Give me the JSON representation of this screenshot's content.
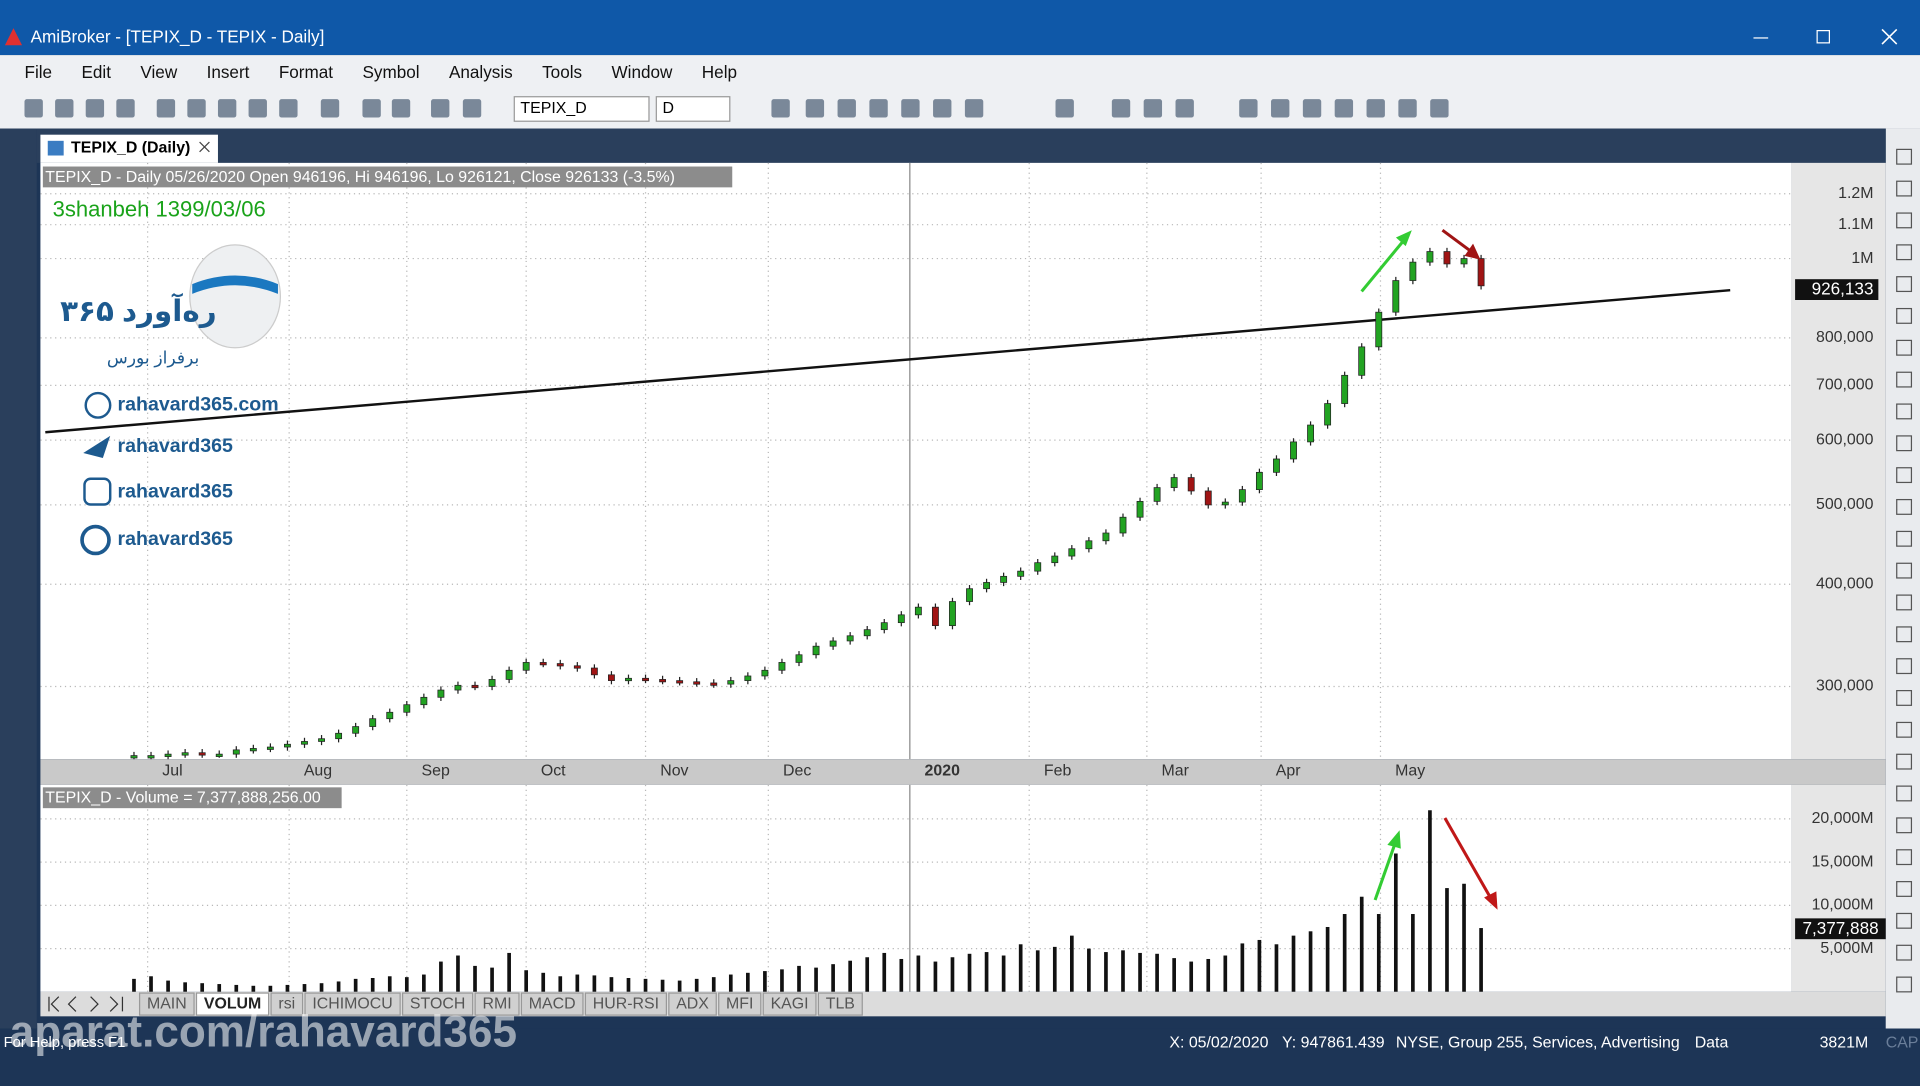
{
  "window": {
    "title": "AmiBroker - [TEPIX_D - TEPIX - Daily]"
  },
  "menu": [
    "File",
    "Edit",
    "View",
    "Insert",
    "Format",
    "Symbol",
    "Analysis",
    "Tools",
    "Window",
    "Help"
  ],
  "toolbar": {
    "symbol": "TEPIX_D",
    "interval": "D"
  },
  "tab": "TEPIX_D (Daily)",
  "overlay": {
    "date": "3shanbeh 1399/03/06",
    "logo": "۳۶۵ ره‌آورد",
    "logo_sub": "برفراز بورس",
    "links": [
      "rahavard365.com",
      "rahavard365",
      "rahavard365",
      "rahavard365"
    ]
  },
  "chart_data": [
    {
      "type": "candlestick",
      "title": "TEPIX_D - Daily 05/26/2020 Open 946196, Hi 946196, Lo 926121, Close 926133 (-3.5%)",
      "last_label": "926,133",
      "log_scale": true,
      "grid": true,
      "up_color": "#22a322",
      "down_color": "#a01414",
      "xlim": [
        -5.2,
        97.2
      ],
      "xticks": [
        {
          "value": 0.8,
          "label": "Jul"
        },
        {
          "value": 9.1,
          "label": "Aug"
        },
        {
          "value": 16,
          "label": "Sep"
        },
        {
          "value": 23,
          "label": "Oct"
        },
        {
          "value": 30,
          "label": "Nov"
        },
        {
          "value": 37.2,
          "label": "Dec"
        },
        {
          "value": 45.5,
          "label": "2020"
        },
        {
          "value": 52.5,
          "label": "Feb"
        },
        {
          "value": 59.4,
          "label": "Mar"
        },
        {
          "value": 66.1,
          "label": "Apr"
        },
        {
          "value": 73.1,
          "label": "May"
        }
      ],
      "ylim": [
        244500,
        1300000
      ],
      "yticks": [
        {
          "value": 300000,
          "label": "300,000"
        },
        {
          "value": 400000,
          "label": "400,000"
        },
        {
          "value": 500000,
          "label": "500,000"
        },
        {
          "value": 600000,
          "label": "600,000"
        },
        {
          "value": 700000,
          "label": "700,000"
        },
        {
          "value": 800000,
          "label": "800,000"
        },
        {
          "value": 1000000,
          "label": "1M"
        },
        {
          "value": 1100000,
          "label": "1.1M"
        },
        {
          "value": 1200000,
          "label": "1.2M"
        }
      ],
      "values": [
        247000,
        247000,
        248000,
        249000,
        248000,
        248000,
        251000,
        252000,
        253000,
        255000,
        257000,
        259000,
        263000,
        268000,
        274000,
        279000,
        285000,
        291000,
        297000,
        301000,
        300000,
        306000,
        314000,
        321000,
        320000,
        318000,
        316000,
        310000,
        305000,
        307000,
        306000,
        305000,
        304000,
        303000,
        302000,
        305000,
        309000,
        314000,
        321000,
        328000,
        336000,
        341000,
        346000,
        352000,
        359000,
        367000,
        375000,
        356000,
        381000,
        395000,
        402000,
        409000,
        415000,
        425000,
        433000,
        442000,
        452000,
        462000,
        483000,
        505000,
        525000,
        540000,
        520000,
        500000,
        504000,
        522000,
        548000,
        569000,
        597000,
        626000,
        665000,
        720000,
        780000,
        860000,
        940000,
        990000,
        1020000,
        985000,
        1000000,
        926133
      ]
    },
    {
      "type": "bar",
      "title": "TEPIX_D - Volume = 7,377,888,256.00",
      "last_label": "7,377,888",
      "color": "#111111",
      "grid": true,
      "xlim": [
        -5.2,
        97.2
      ],
      "ylim": [
        0,
        23650
      ],
      "yticks": [
        {
          "value": 5000,
          "label": "5,000M"
        },
        {
          "value": 10000,
          "label": "10,000M"
        },
        {
          "value": 15000,
          "label": "15,000M"
        },
        {
          "value": 20000,
          "label": "20,000M"
        }
      ],
      "values": [
        1500,
        1800,
        1300,
        1100,
        1000,
        900,
        800,
        700,
        700,
        800,
        900,
        1000,
        1200,
        1500,
        1600,
        1800,
        1700,
        2000,
        3500,
        4200,
        3000,
        2800,
        4500,
        2500,
        2200,
        1800,
        2000,
        1900,
        1700,
        1600,
        1500,
        1400,
        1300,
        1500,
        1700,
        2000,
        2200,
        2400,
        2600,
        3000,
        2800,
        3200,
        3600,
        4000,
        4500,
        3800,
        4200,
        3500,
        4000,
        4400,
        4600,
        4200,
        5500,
        4800,
        5200,
        6500,
        5000,
        4600,
        4800,
        4500,
        4400,
        3900,
        3500,
        3800,
        4200,
        5600,
        6000,
        5500,
        6500,
        7000,
        7500,
        9000,
        11000,
        9000,
        16000,
        9000,
        21000,
        12000,
        12500,
        7377.888256
      ]
    }
  ],
  "sheet_tabs": [
    "MAIN",
    "VOLUM",
    "rsi",
    "ICHIMOCU",
    "STOCH",
    "RMI",
    "MACD",
    "HUR-RSI",
    "ADX",
    "MFI",
    "KAGI",
    "TLB"
  ],
  "status": {
    "help": "For Help, press F1",
    "x": "X: 05/02/2020",
    "y": "Y: 947861.439",
    "info": "NYSE, Group 255, Services, Advertising",
    "data": "Data",
    "memory": "3821M",
    "cap": "CAP"
  },
  "watermark": "aparat.com/rahavard365"
}
